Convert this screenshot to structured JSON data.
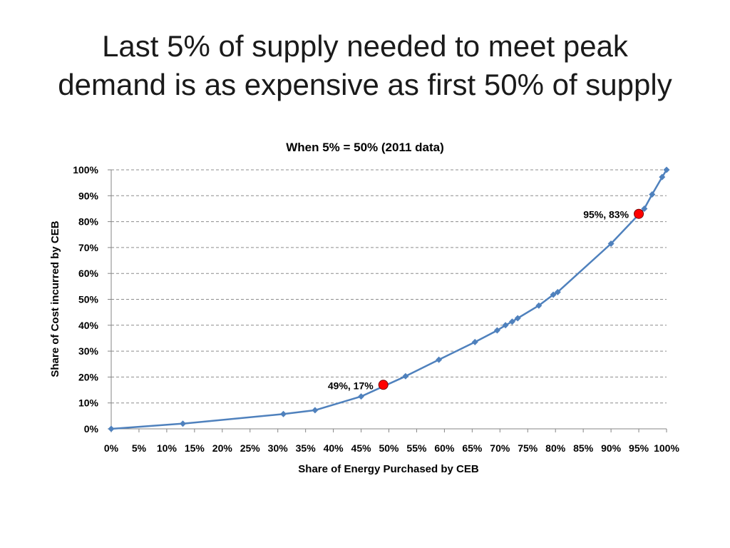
{
  "slide": {
    "title_line1": "Last 5% of supply needed to meet peak",
    "title_line2": "demand is as expensive as first 50% of supply"
  },
  "chart_data": {
    "type": "line",
    "title": "When 5% = 50% (2011 data)",
    "xlabel": "Share of Energy Purchased by CEB",
    "ylabel": "Share of Cost incurred by CEB",
    "xlim": [
      0,
      100
    ],
    "ylim": [
      0,
      100
    ],
    "x_ticks": [
      "0%",
      "5%",
      "10%",
      "15%",
      "20%",
      "25%",
      "30%",
      "35%",
      "40%",
      "45%",
      "50%",
      "55%",
      "60%",
      "65%",
      "70%",
      "75%",
      "80%",
      "85%",
      "90%",
      "95%",
      "100%"
    ],
    "y_ticks": [
      "0%",
      "10%",
      "20%",
      "30%",
      "40%",
      "50%",
      "60%",
      "70%",
      "80%",
      "90%",
      "100%"
    ],
    "grid": "horizontal dashed",
    "series": [
      {
        "color": "#4f81bd",
        "marker": "diamond",
        "points": [
          {
            "x": 0,
            "y": 0
          },
          {
            "x": 12.9,
            "y": 2
          },
          {
            "x": 31,
            "y": 5.7
          },
          {
            "x": 36.7,
            "y": 7.2
          },
          {
            "x": 45,
            "y": 12.5
          },
          {
            "x": 53,
            "y": 20.3
          },
          {
            "x": 59,
            "y": 26.7
          },
          {
            "x": 65.5,
            "y": 33.5
          },
          {
            "x": 69.5,
            "y": 38
          },
          {
            "x": 71,
            "y": 40
          },
          {
            "x": 72.2,
            "y": 41.4
          },
          {
            "x": 73.2,
            "y": 42.7
          },
          {
            "x": 77,
            "y": 47.6
          },
          {
            "x": 79.6,
            "y": 51.8
          },
          {
            "x": 80.4,
            "y": 52.8
          },
          {
            "x": 90,
            "y": 71.5
          },
          {
            "x": 96,
            "y": 85
          },
          {
            "x": 97.4,
            "y": 90.5
          },
          {
            "x": 99.2,
            "y": 97.2
          },
          {
            "x": 100,
            "y": 100
          }
        ]
      }
    ],
    "highlights": [
      {
        "x": 49,
        "y": 17,
        "label": "49%, 17%",
        "color": "#ff0000"
      },
      {
        "x": 95,
        "y": 83,
        "label": "95%, 83%",
        "color": "#ff0000"
      }
    ]
  }
}
